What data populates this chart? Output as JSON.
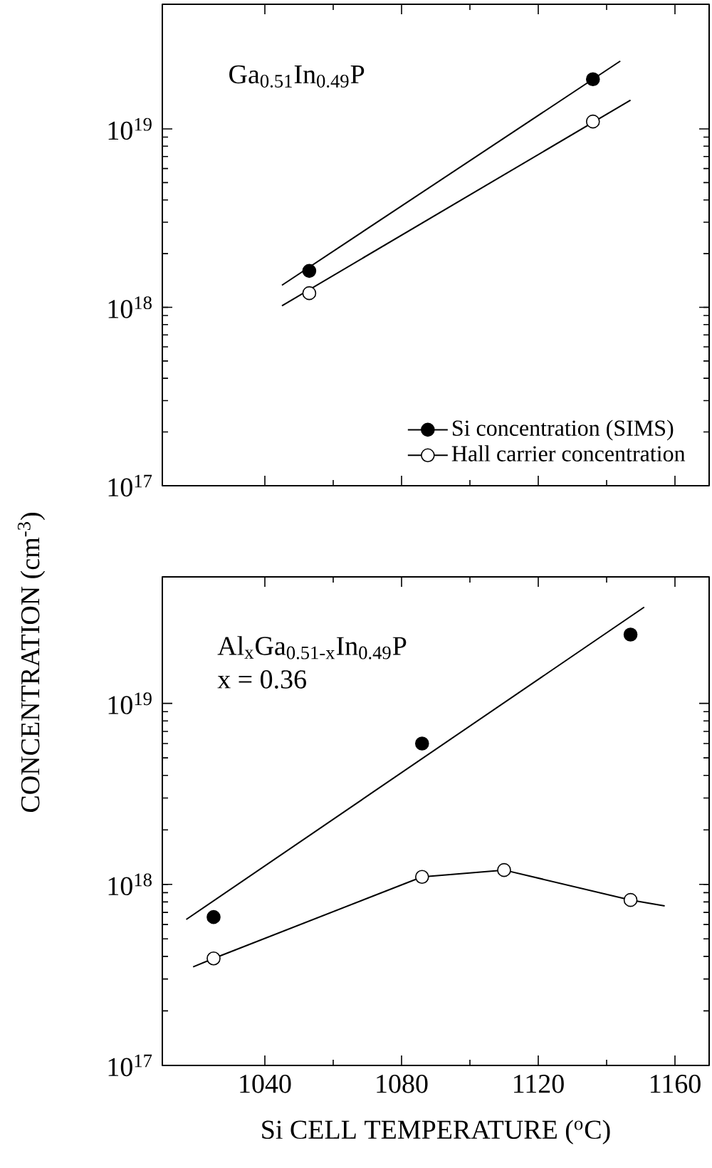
{
  "chart_data": [
    {
      "type": "scatter",
      "log": "y",
      "grid": false,
      "legend": "bottom right",
      "xlim": [
        1010,
        1170
      ],
      "ylim": [
        1e+17,
        5e+19
      ],
      "xticks": [
        1040,
        1080,
        1120,
        1160
      ],
      "yticks": [
        {
          "value": 1e+17,
          "label": "10$^{17}$"
        },
        {
          "value": 1e+18,
          "label": "10$^{18}$"
        },
        {
          "value": 1e+19,
          "label": "10$^{19}$"
        }
      ],
      "tick_labels": "y",
      "ylabel": "CONCENTRATION (cm$^{-3}$)",
      "annotations": [
        "Ga$_{0.51}$In$_{0.49}$P"
      ],
      "series": [
        {
          "name": "Si concentration (SIMS)",
          "marker": "circle",
          "color": "#000000",
          "x": [
            1053,
            1136
          ],
          "values": [
            1.6e+18,
            1.9e+19
          ]
        },
        {
          "name": "Hall carrier concentration",
          "marker": "circle",
          "color": "#ffffff",
          "x": [
            1053,
            1136
          ],
          "values": [
            1.2e+18,
            1.1e+19
          ]
        },
        {
          "type": "line",
          "marker": "none",
          "line_style": "solid",
          "color": "#000000",
          "x": [
            1045,
            1144
          ],
          "values": [
            1.33e+18,
            2.4e+19
          ]
        },
        {
          "type": "line",
          "marker": "none",
          "line_style": "solid",
          "color": "#000000",
          "x": [
            1045,
            1147
          ],
          "values": [
            1.02e+18,
            1.45e+19
          ]
        }
      ]
    },
    {
      "type": "scatter",
      "log": "y",
      "grid": false,
      "xlim": [
        1010,
        1170
      ],
      "ylim": [
        1e+17,
        5e+19
      ],
      "xticks": [
        1040,
        1080,
        1120,
        1160
      ],
      "yticks": [
        {
          "value": 1e+17,
          "label": "10$^{17}$"
        },
        {
          "value": 1e+18,
          "label": "10$^{18}$"
        },
        {
          "value": 1e+19,
          "label": "10$^{19}$"
        }
      ],
      "xlabel": "Si CELL TEMPERATURE ($^{o}$C)",
      "annotations": [
        "Al$_{x}$Ga$_{0.51-x}$In$_{0.49}$P",
        "x = 0.36"
      ],
      "series": [
        {
          "marker": "circle",
          "color": "#000000",
          "x": [
            1025,
            1086,
            1147
          ],
          "values": [
            6.6e+17,
            6e+18,
            2.4e+19
          ]
        },
        {
          "marker": "circle",
          "color": "#ffffff",
          "x": [
            1025,
            1086,
            1110,
            1147
          ],
          "values": [
            3.9e+17,
            1.1e+18,
            1.2e+18,
            8.2e+17
          ]
        },
        {
          "type": "line",
          "marker": "none",
          "line_style": "solid",
          "color": "#000000",
          "x": [
            1017,
            1151
          ],
          "values": [
            6.4e+17,
            3.4e+19
          ]
        },
        {
          "type": "line",
          "marker": "none",
          "line_style": "solid",
          "color": "#000000",
          "x": [
            1019,
            1025,
            1086,
            1110,
            1147,
            1157
          ],
          "values": [
            3.5e+17,
            3.9e+17,
            1.1e+18,
            1.2e+18,
            8.2e+17,
            7.6e+17
          ]
        }
      ]
    }
  ]
}
